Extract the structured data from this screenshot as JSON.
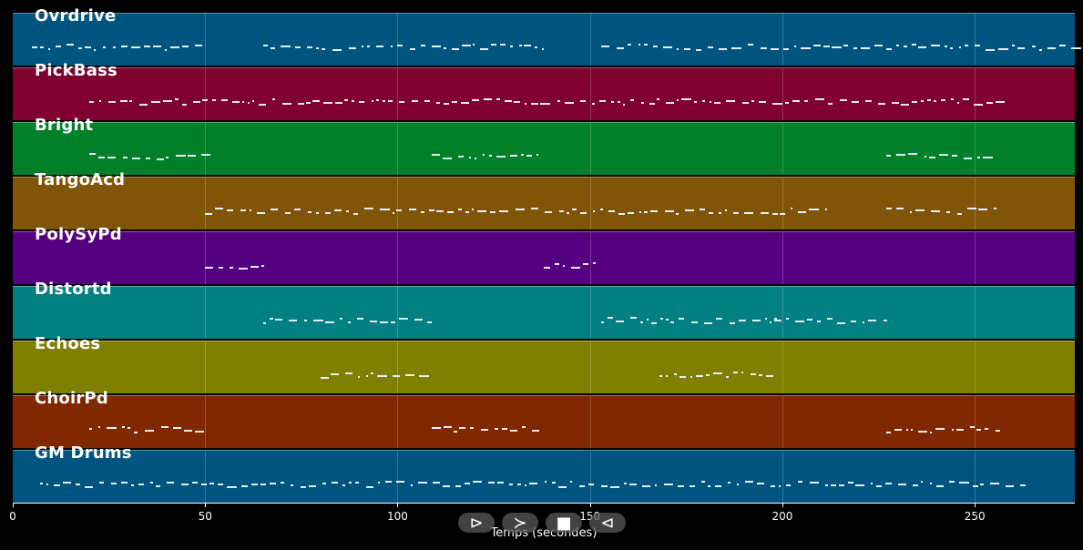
{
  "tracks": [
    {
      "name": "Ovrdrive",
      "color": "#005580"
    },
    {
      "name": "PickBass",
      "color": "#800030"
    },
    {
      "name": "Bright",
      "color": "#008028"
    },
    {
      "name": "TangoAcd",
      "color": "#805508"
    },
    {
      "name": "PolySyPd",
      "color": "#550080"
    },
    {
      "name": "Distortd",
      "color": "#008080"
    },
    {
      "name": "Echoes",
      "color": "#808000"
    },
    {
      "name": "ChoirPd",
      "color": "#802800"
    },
    {
      "name": "GM Drums",
      "color": "#005580"
    }
  ],
  "axis": {
    "label": "Temps (secondes)",
    "max": 276,
    "ticks": [
      "0",
      "50",
      "100",
      "150",
      "200",
      "250"
    ]
  },
  "controls": [
    {
      "name": "play-button",
      "glyph": "⊳"
    },
    {
      "name": "forward-button",
      "glyph": "≻"
    },
    {
      "name": "stop-button",
      "glyph": "■"
    },
    {
      "name": "rewind-button",
      "glyph": "⊲"
    }
  ],
  "note_regions": [
    [
      [
        5,
        50
      ],
      [
        65,
        138
      ],
      [
        153,
        276
      ]
    ],
    [
      [
        20,
        256
      ]
    ],
    [
      [
        20,
        50
      ],
      [
        109,
        138
      ],
      [
        227,
        256
      ]
    ],
    [
      [
        50,
        110
      ],
      [
        110,
        212
      ],
      [
        227,
        256
      ]
    ],
    [
      [
        50,
        65
      ],
      [
        138,
        153
      ]
    ],
    [
      [
        65,
        110
      ],
      [
        153,
        198
      ],
      [
        198,
        227
      ]
    ],
    [
      [
        80,
        109
      ],
      [
        168,
        197
      ]
    ],
    [
      [
        20,
        50
      ],
      [
        109,
        138
      ],
      [
        227,
        256
      ]
    ],
    [
      [
        7,
        265
      ]
    ]
  ]
}
